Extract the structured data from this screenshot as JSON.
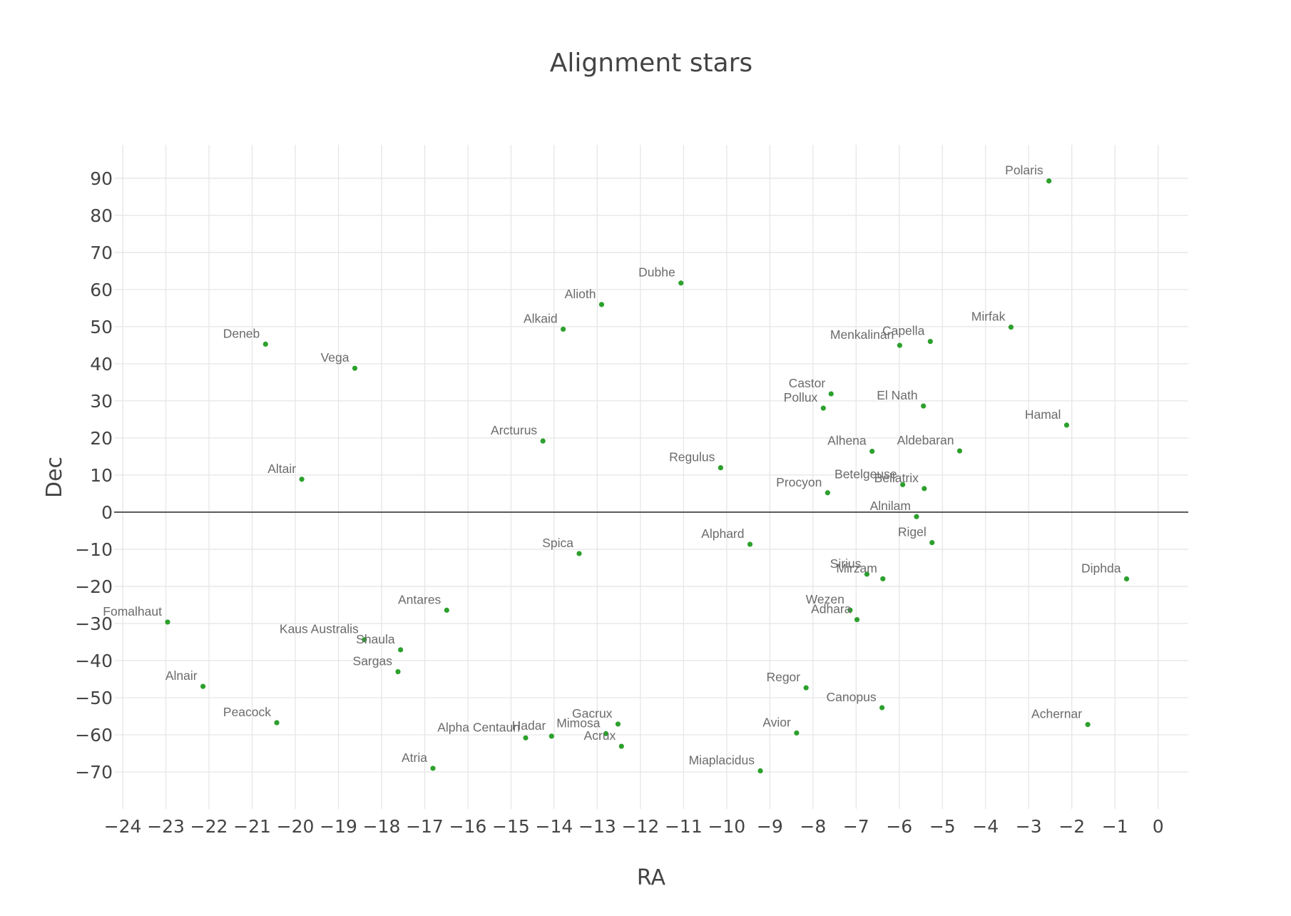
{
  "chart_data": {
    "type": "scatter",
    "title": "Alignment stars",
    "xlabel": "RA",
    "ylabel": "Dec",
    "xlim": [
      -24.2,
      0.7
    ],
    "ylim": [
      -80,
      99
    ],
    "x_ticks": [
      -24,
      -23,
      -22,
      -21,
      -20,
      -19,
      -18,
      -17,
      -16,
      -15,
      -14,
      -13,
      -12,
      -11,
      -10,
      -9,
      -8,
      -7,
      -6,
      -5,
      -4,
      -3,
      -2,
      -1,
      0
    ],
    "y_ticks": [
      -70,
      -60,
      -50,
      -40,
      -30,
      -20,
      -10,
      0,
      10,
      20,
      30,
      40,
      50,
      60,
      70,
      80,
      90
    ],
    "grid": true,
    "marker_color": "#2ca02c",
    "points": [
      {
        "name": "Polaris",
        "x": -2.53,
        "y": 89.26
      },
      {
        "name": "Dubhe",
        "x": -11.06,
        "y": 61.75
      },
      {
        "name": "Alioth",
        "x": -12.9,
        "y": 55.96
      },
      {
        "name": "Alkaid",
        "x": -13.79,
        "y": 49.31
      },
      {
        "name": "Mirfak",
        "x": -3.41,
        "y": 49.86
      },
      {
        "name": "Capella",
        "x": -5.28,
        "y": 46.0
      },
      {
        "name": "Menkalinan",
        "x": -5.99,
        "y": 44.95
      },
      {
        "name": "Deneb",
        "x": -20.69,
        "y": 45.28
      },
      {
        "name": "Vega",
        "x": -18.62,
        "y": 38.78
      },
      {
        "name": "Castor",
        "x": -7.58,
        "y": 31.89
      },
      {
        "name": "Pollux",
        "x": -7.76,
        "y": 28.03
      },
      {
        "name": "El Nath",
        "x": -5.44,
        "y": 28.61
      },
      {
        "name": "Hamal",
        "x": -2.12,
        "y": 23.46
      },
      {
        "name": "Arcturus",
        "x": -14.26,
        "y": 19.18
      },
      {
        "name": "Aldebaran",
        "x": -4.6,
        "y": 16.51
      },
      {
        "name": "Alhena",
        "x": -6.63,
        "y": 16.4
      },
      {
        "name": "Regulus",
        "x": -10.14,
        "y": 11.97
      },
      {
        "name": "Altair",
        "x": -19.85,
        "y": 8.87
      },
      {
        "name": "Betelgeuse",
        "x": -5.92,
        "y": 7.41
      },
      {
        "name": "Bellatrix",
        "x": -5.42,
        "y": 6.35
      },
      {
        "name": "Procyon",
        "x": -7.66,
        "y": 5.22
      },
      {
        "name": "Alnilam",
        "x": -5.6,
        "y": -1.2
      },
      {
        "name": "Rigel",
        "x": -5.24,
        "y": -8.2
      },
      {
        "name": "Alphard",
        "x": -9.46,
        "y": -8.66
      },
      {
        "name": "Spica",
        "x": -13.42,
        "y": -11.16
      },
      {
        "name": "Sirius",
        "x": -6.75,
        "y": -16.72
      },
      {
        "name": "Mirzam",
        "x": -6.38,
        "y": -17.96
      },
      {
        "name": "Diphda",
        "x": -0.73,
        "y": -17.99
      },
      {
        "name": "Antares",
        "x": -16.49,
        "y": -26.43
      },
      {
        "name": "Wezen",
        "x": -7.14,
        "y": -26.39
      },
      {
        "name": "Adhara",
        "x": -6.98,
        "y": -28.97
      },
      {
        "name": "Fomalhaut",
        "x": -22.96,
        "y": -29.62
      },
      {
        "name": "Kaus Australis",
        "x": -18.4,
        "y": -34.38
      },
      {
        "name": "Shaula",
        "x": -17.56,
        "y": -37.1
      },
      {
        "name": "Sargas",
        "x": -17.62,
        "y": -43.0
      },
      {
        "name": "Alnair",
        "x": -22.14,
        "y": -46.96
      },
      {
        "name": "Regor",
        "x": -8.16,
        "y": -47.34
      },
      {
        "name": "Canopus",
        "x": -6.4,
        "y": -52.7
      },
      {
        "name": "Peacock",
        "x": -20.43,
        "y": -56.74
      },
      {
        "name": "Gacrux",
        "x": -12.52,
        "y": -57.11
      },
      {
        "name": "Achernar",
        "x": -1.63,
        "y": -57.24
      },
      {
        "name": "Avior",
        "x": -8.38,
        "y": -59.51
      },
      {
        "name": "Mimosa",
        "x": -12.8,
        "y": -59.69
      },
      {
        "name": "Hadar",
        "x": -14.06,
        "y": -60.37
      },
      {
        "name": "Alpha Centauri",
        "x": -14.66,
        "y": -60.83
      },
      {
        "name": "Acrux",
        "x": -12.44,
        "y": -63.1
      },
      {
        "name": "Atria",
        "x": -16.81,
        "y": -69.03
      },
      {
        "name": "Miaplacidus",
        "x": -9.22,
        "y": -69.72
      }
    ]
  }
}
